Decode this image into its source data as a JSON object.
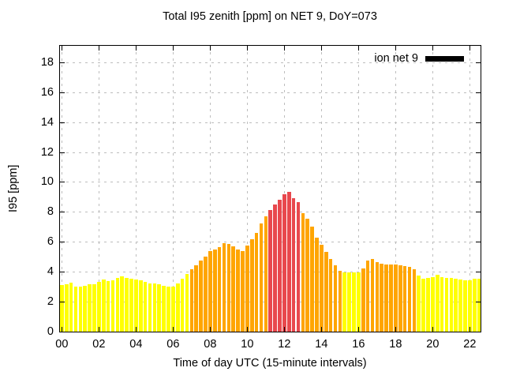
{
  "chart_data": {
    "type": "bar",
    "title": "Total I95 zenith [ppm] on NET 9, DoY=073",
    "xlabel": "Time of day UTC (15-minute intervals)",
    "ylabel": "I95 [ppm]",
    "legend": {
      "label": "ion net 9",
      "swatch_color": "#000000",
      "position": "top-right-inside"
    },
    "grid": true,
    "interval_minutes": 15,
    "x_tick_labels": [
      "00",
      "02",
      "04",
      "06",
      "08",
      "10",
      "12",
      "14",
      "16",
      "18",
      "20",
      "22"
    ],
    "x_tick_hours": [
      0,
      2,
      4,
      6,
      8,
      10,
      12,
      14,
      16,
      18,
      20,
      22
    ],
    "y_ticks": [
      0,
      2,
      4,
      6,
      8,
      10,
      12,
      14,
      16,
      18
    ],
    "ylim": [
      0,
      19.15
    ],
    "xlim_hours": [
      -0.1,
      22.58
    ],
    "colors": {
      "low": "#ffff00",
      "mid": "#ffa500",
      "high": "#e8484d"
    },
    "thresholds": {
      "mid_min": 4.0,
      "high_min": 8.0
    },
    "points": [
      {
        "t": "00:00",
        "v": 3.1
      },
      {
        "t": "00:15",
        "v": 3.15
      },
      {
        "t": "00:30",
        "v": 3.3
      },
      {
        "t": "00:45",
        "v": 3.0
      },
      {
        "t": "01:00",
        "v": 3.0
      },
      {
        "t": "01:15",
        "v": 3.05
      },
      {
        "t": "01:30",
        "v": 3.2
      },
      {
        "t": "01:45",
        "v": 3.2
      },
      {
        "t": "02:00",
        "v": 3.35
      },
      {
        "t": "02:15",
        "v": 3.5
      },
      {
        "t": "02:30",
        "v": 3.4
      },
      {
        "t": "02:45",
        "v": 3.45
      },
      {
        "t": "03:00",
        "v": 3.6
      },
      {
        "t": "03:15",
        "v": 3.7
      },
      {
        "t": "03:30",
        "v": 3.6
      },
      {
        "t": "03:45",
        "v": 3.55
      },
      {
        "t": "04:00",
        "v": 3.5
      },
      {
        "t": "04:15",
        "v": 3.45
      },
      {
        "t": "04:30",
        "v": 3.35
      },
      {
        "t": "04:45",
        "v": 3.25
      },
      {
        "t": "05:00",
        "v": 3.25
      },
      {
        "t": "05:15",
        "v": 3.15
      },
      {
        "t": "05:30",
        "v": 3.05
      },
      {
        "t": "05:45",
        "v": 3.0
      },
      {
        "t": "06:00",
        "v": 3.0
      },
      {
        "t": "06:15",
        "v": 3.25
      },
      {
        "t": "06:30",
        "v": 3.55
      },
      {
        "t": "06:45",
        "v": 3.85
      },
      {
        "t": "07:00",
        "v": 4.2
      },
      {
        "t": "07:15",
        "v": 4.45
      },
      {
        "t": "07:30",
        "v": 4.75
      },
      {
        "t": "07:45",
        "v": 5.0
      },
      {
        "t": "08:00",
        "v": 5.4
      },
      {
        "t": "08:15",
        "v": 5.5
      },
      {
        "t": "08:30",
        "v": 5.65
      },
      {
        "t": "08:45",
        "v": 5.9
      },
      {
        "t": "09:00",
        "v": 5.85
      },
      {
        "t": "09:15",
        "v": 5.7
      },
      {
        "t": "09:30",
        "v": 5.5
      },
      {
        "t": "09:45",
        "v": 5.4
      },
      {
        "t": "10:00",
        "v": 5.75
      },
      {
        "t": "10:15",
        "v": 6.2
      },
      {
        "t": "10:30",
        "v": 6.6
      },
      {
        "t": "10:45",
        "v": 7.25
      },
      {
        "t": "11:00",
        "v": 7.7
      },
      {
        "t": "11:15",
        "v": 8.15
      },
      {
        "t": "11:30",
        "v": 8.5
      },
      {
        "t": "11:45",
        "v": 8.85
      },
      {
        "t": "12:00",
        "v": 9.2
      },
      {
        "t": "12:15",
        "v": 9.35
      },
      {
        "t": "12:30",
        "v": 8.95
      },
      {
        "t": "12:45",
        "v": 8.7
      },
      {
        "t": "13:00",
        "v": 7.95
      },
      {
        "t": "13:15",
        "v": 7.55
      },
      {
        "t": "13:30",
        "v": 7.05
      },
      {
        "t": "13:45",
        "v": 6.3
      },
      {
        "t": "14:00",
        "v": 5.8
      },
      {
        "t": "14:15",
        "v": 5.35
      },
      {
        "t": "14:30",
        "v": 4.85
      },
      {
        "t": "14:45",
        "v": 4.45
      },
      {
        "t": "15:00",
        "v": 4.1
      },
      {
        "t": "15:15",
        "v": 3.98
      },
      {
        "t": "15:30",
        "v": 3.97
      },
      {
        "t": "15:45",
        "v": 3.98
      },
      {
        "t": "16:00",
        "v": 3.95
      },
      {
        "t": "16:15",
        "v": 4.25
      },
      {
        "t": "16:30",
        "v": 4.75
      },
      {
        "t": "16:45",
        "v": 4.85
      },
      {
        "t": "17:00",
        "v": 4.65
      },
      {
        "t": "17:15",
        "v": 4.57
      },
      {
        "t": "17:30",
        "v": 4.52
      },
      {
        "t": "17:45",
        "v": 4.52
      },
      {
        "t": "18:00",
        "v": 4.5
      },
      {
        "t": "18:15",
        "v": 4.47
      },
      {
        "t": "18:30",
        "v": 4.4
      },
      {
        "t": "18:45",
        "v": 4.35
      },
      {
        "t": "19:00",
        "v": 4.2
      },
      {
        "t": "19:15",
        "v": 3.76
      },
      {
        "t": "19:30",
        "v": 3.55
      },
      {
        "t": "19:45",
        "v": 3.58
      },
      {
        "t": "20:00",
        "v": 3.67
      },
      {
        "t": "20:15",
        "v": 3.8
      },
      {
        "t": "20:30",
        "v": 3.63
      },
      {
        "t": "20:45",
        "v": 3.6
      },
      {
        "t": "21:00",
        "v": 3.58
      },
      {
        "t": "21:15",
        "v": 3.55
      },
      {
        "t": "21:30",
        "v": 3.5
      },
      {
        "t": "21:45",
        "v": 3.45
      },
      {
        "t": "22:00",
        "v": 3.45
      },
      {
        "t": "22:15",
        "v": 3.55
      },
      {
        "t": "22:30",
        "v": 3.55
      }
    ]
  }
}
